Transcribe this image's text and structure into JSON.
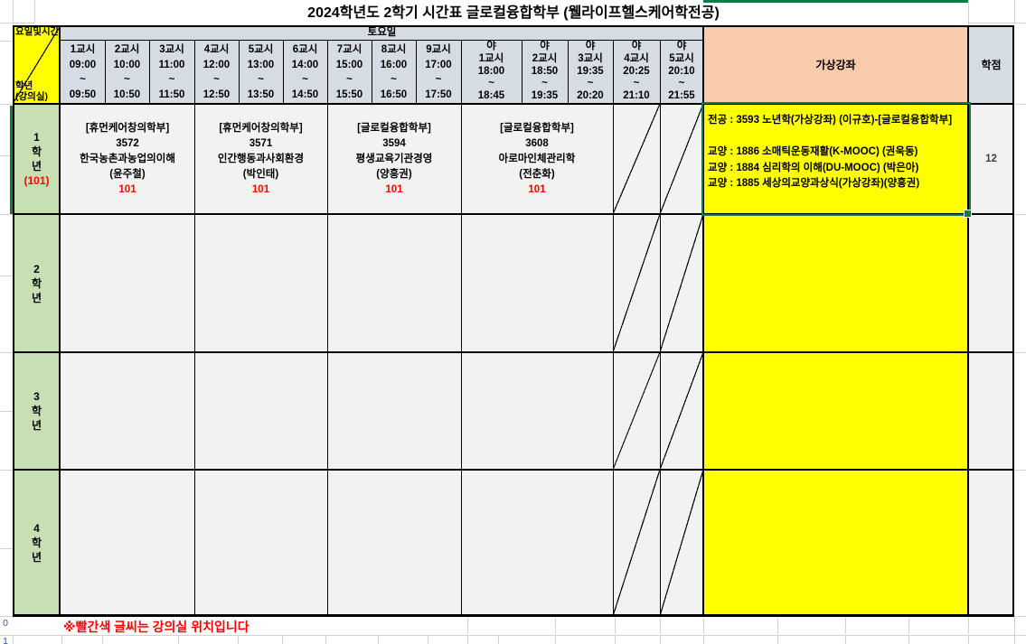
{
  "title": "2024학년도 2학기 시간표 글로컬융합학부 (웰라이프헬스케어학전공)",
  "header": {
    "corner_top": "요일및시간",
    "corner_bottom": "학년\n(강의실)",
    "day_label": "토요일",
    "virtual_label": "가상강좌",
    "credits_label": "학점",
    "day_periods": [
      {
        "name": "1교시",
        "start": "09:00",
        "sep": "~",
        "end": "09:50"
      },
      {
        "name": "2교시",
        "start": "10:00",
        "sep": "~",
        "end": "10:50"
      },
      {
        "name": "3교시",
        "start": "11:00",
        "sep": "~",
        "end": "11:50"
      },
      {
        "name": "4교시",
        "start": "12:00",
        "sep": "~",
        "end": "12:50"
      },
      {
        "name": "5교시",
        "start": "13:00",
        "sep": "~",
        "end": "13:50"
      },
      {
        "name": "6교시",
        "start": "14:00",
        "sep": "~",
        "end": "14:50"
      },
      {
        "name": "7교시",
        "start": "15:00",
        "sep": "~",
        "end": "15:50"
      },
      {
        "name": "8교시",
        "start": "16:00",
        "sep": "~",
        "end": "16:50"
      },
      {
        "name": "9교시",
        "start": "17:00",
        "sep": "~",
        "end": "17:50"
      }
    ],
    "night_periods": [
      {
        "prefix": "야",
        "name": "1교시",
        "start": "18:00",
        "sep": "~",
        "end": "18:45"
      },
      {
        "prefix": "야",
        "name": "2교시",
        "start": "18:50",
        "sep": "~",
        "end": "19:35"
      },
      {
        "prefix": "야",
        "name": "3교시",
        "start": "19:35",
        "sep": "~",
        "end": "20:20"
      },
      {
        "prefix": "야",
        "name": "4교시",
        "start": "20:25",
        "sep": "~",
        "end": "21:10"
      },
      {
        "prefix": "야",
        "name": "5교시",
        "start": "20:10",
        "sep": "~",
        "end": "21:55"
      }
    ]
  },
  "rows": [
    {
      "grade": "1\n학\n년",
      "room": "(101)",
      "courses": [
        {
          "dept": "[휴먼케어창의학부]",
          "code": "3572",
          "name": "한국농촌과농업의이해",
          "prof": "(윤주철)",
          "room": "101"
        },
        {
          "dept": "[휴먼케어창의학부]",
          "code": "3571",
          "name": "인간행동과사회환경",
          "prof": "(박인태)",
          "room": "101"
        },
        {
          "dept": "[글로컬융합학부]",
          "code": "3594",
          "name": "평생교육기관경영",
          "prof": "(양흥권)",
          "room": "101"
        },
        {
          "dept": "[글로컬융합학부]",
          "code": "3608",
          "name": "아로마인체관리학",
          "prof": "(전춘화)",
          "room": "101"
        }
      ],
      "virtual": "전공 : 3593 노년학(가상강좌) (이규호)-[글로컬융합학부]\n\n교양 : 1886 소매틱운동재활(K-MOOC) (권욱동)\n교양 : 1884 심리학의 이해(DU-MOOC) (박은아)\n교양 : 1885 세상의교양과상식(가상강좌)(양흥권)",
      "credits": "12"
    },
    {
      "grade": "2\n학\n년",
      "room": "",
      "virtual": "",
      "credits": ""
    },
    {
      "grade": "3\n학\n년",
      "room": "",
      "virtual": "",
      "credits": ""
    },
    {
      "grade": "4\n학\n년",
      "room": "",
      "virtual": "",
      "credits": ""
    }
  ],
  "footer_note": "※빨간색 글씨는 강의실 위치입니다",
  "stray_row_numbers": [
    "0",
    "1"
  ],
  "colors": {
    "header_fill": "#D6DCE4",
    "grade_fill": "#C6E0B4",
    "course_fill": "#F2F2F2",
    "virtual_header_fill": "#F8CBAD",
    "virtual_fill": "#FFFF00",
    "corner_fill": "#FFFF00",
    "room_text": "#FF0000",
    "note_text": "#FF0000",
    "selection_green": "#107C41",
    "border_black": "#000000",
    "gridline_gray": "#D2D2D2"
  }
}
